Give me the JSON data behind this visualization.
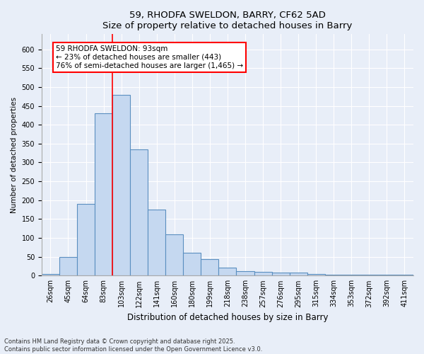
{
  "title1": "59, RHODFA SWELDON, BARRY, CF62 5AD",
  "title2": "Size of property relative to detached houses in Barry",
  "xlabel": "Distribution of detached houses by size in Barry",
  "ylabel": "Number of detached properties",
  "categories": [
    "26sqm",
    "45sqm",
    "64sqm",
    "83sqm",
    "103sqm",
    "122sqm",
    "141sqm",
    "160sqm",
    "180sqm",
    "199sqm",
    "218sqm",
    "238sqm",
    "257sqm",
    "276sqm",
    "295sqm",
    "315sqm",
    "334sqm",
    "353sqm",
    "372sqm",
    "392sqm",
    "411sqm"
  ],
  "values": [
    5,
    50,
    190,
    430,
    480,
    335,
    175,
    110,
    60,
    43,
    22,
    11,
    10,
    8,
    8,
    4,
    2,
    2,
    2,
    3,
    2
  ],
  "bar_color": "#c5d8f0",
  "bar_edge_color": "#5a8fc0",
  "vline_color": "red",
  "vline_x_index": 3.5,
  "annotation_text": "59 RHODFA SWELDON: 93sqm\n← 23% of detached houses are smaller (443)\n76% of semi-detached houses are larger (1,465) →",
  "annotation_box_color": "white",
  "annotation_box_edge_color": "red",
  "ylim": [
    0,
    640
  ],
  "yticks": [
    0,
    50,
    100,
    150,
    200,
    250,
    300,
    350,
    400,
    450,
    500,
    550,
    600
  ],
  "footer_text": "Contains HM Land Registry data © Crown copyright and database right 2025.\nContains public sector information licensed under the Open Government Licence v3.0.",
  "background_color": "#e8eef8",
  "plot_background_color": "#e8eef8",
  "grid_color": "white",
  "title_fontsize": 9.5,
  "ylabel_fontsize": 7.5,
  "xlabel_fontsize": 8.5,
  "tick_fontsize": 7,
  "annotation_fontsize": 7.5,
  "footer_fontsize": 6
}
